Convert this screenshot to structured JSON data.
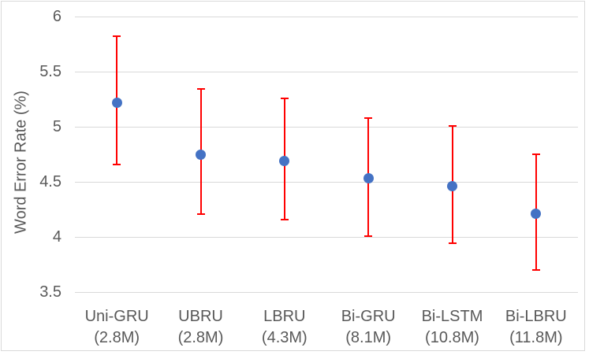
{
  "chart_data": {
    "type": "scatter",
    "title": "",
    "xlabel": "",
    "ylabel": "Word Error Rate (%)",
    "ylim": [
      3.5,
      6
    ],
    "yticks": [
      6,
      5.5,
      5,
      4.5,
      4,
      3.5
    ],
    "ytick_labels": [
      "6",
      "5.5",
      "5",
      "4.5",
      "4",
      "3.5"
    ],
    "grid": true,
    "legend": "none",
    "categories": [
      {
        "name": "Uni-GRU",
        "params": "(2.8M)"
      },
      {
        "name": "UBRU",
        "params": "(2.8M)"
      },
      {
        "name": "LBRU",
        "params": "(4.3M)"
      },
      {
        "name": "Bi-GRU",
        "params": "(8.1M)"
      },
      {
        "name": "Bi-LSTM",
        "params": "(10.8M)"
      },
      {
        "name": "Bi-LBRU",
        "params": "(11.8M)"
      }
    ],
    "series": [
      {
        "name": "Word Error Rate",
        "marker": "circle",
        "values": [
          5.22,
          4.75,
          4.69,
          4.53,
          4.46,
          4.21
        ],
        "error_high": [
          5.82,
          5.34,
          5.26,
          5.08,
          5.01,
          4.75
        ],
        "error_low": [
          4.66,
          4.21,
          4.16,
          4.01,
          3.94,
          3.7
        ]
      }
    ]
  },
  "colors": {
    "marker": "#4472C4",
    "error_bar": "#FF0000",
    "gridline": "#D9D9D9",
    "axis_text": "#595959",
    "border": "#D9D9D9",
    "background": "#FFFFFF"
  }
}
